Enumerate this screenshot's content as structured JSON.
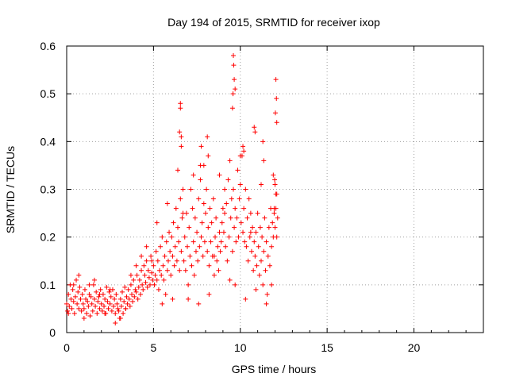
{
  "chart_data": {
    "type": "scatter",
    "title": "Day 194 of 2015, SRMTID for receiver ixop",
    "xlabel": "GPS time / hours",
    "ylabel": "SRMTID / TECUs",
    "xlim": [
      0,
      24
    ],
    "ylim": [
      0,
      0.6
    ],
    "xticks": [
      0,
      5,
      10,
      15,
      20
    ],
    "xtick_labels": [
      "0",
      "5",
      "10",
      "15",
      "20"
    ],
    "yticks": [
      0,
      0.1,
      0.2,
      0.3,
      0.4,
      0.5,
      0.6
    ],
    "ytick_labels": [
      "0",
      "0.1",
      "0.2",
      "0.3",
      "0.4",
      "0.5",
      "0.6"
    ],
    "grid": true,
    "marker": "+",
    "marker_color": "#ff0000",
    "series": [
      {
        "name": "SRMTID",
        "x": [
          0.0,
          0.05,
          0.1,
          0.15,
          0.2,
          0.25,
          0.3,
          0.35,
          0.4,
          0.45,
          0.5,
          0.55,
          0.6,
          0.65,
          0.7,
          0.75,
          0.8,
          0.85,
          0.9,
          0.95,
          1.0,
          1.05,
          1.1,
          1.15,
          1.2,
          1.25,
          1.3,
          1.35,
          1.4,
          1.45,
          1.5,
          1.55,
          1.6,
          1.65,
          1.7,
          1.75,
          1.8,
          1.85,
          1.9,
          1.95,
          2.0,
          2.05,
          2.1,
          2.15,
          2.2,
          2.25,
          2.3,
          2.35,
          2.4,
          2.45,
          2.5,
          2.55,
          2.6,
          2.65,
          2.7,
          2.75,
          2.8,
          2.85,
          2.9,
          2.95,
          3.0,
          3.05,
          3.1,
          3.15,
          3.2,
          3.25,
          3.3,
          3.35,
          3.4,
          3.45,
          3.5,
          3.55,
          3.6,
          3.65,
          3.7,
          3.75,
          3.8,
          3.85,
          3.9,
          3.95,
          4.0,
          4.05,
          4.1,
          4.15,
          4.2,
          4.25,
          4.3,
          4.35,
          4.4,
          4.45,
          4.5,
          4.55,
          4.6,
          4.65,
          4.7,
          4.75,
          4.8,
          4.85,
          4.9,
          4.95,
          5.0,
          5.05,
          5.1,
          5.15,
          5.2,
          5.25,
          5.3,
          5.35,
          5.4,
          5.45,
          5.5,
          5.55,
          5.6,
          5.65,
          5.7,
          5.75,
          5.8,
          5.85,
          5.9,
          5.95,
          6.0,
          6.05,
          6.1,
          6.15,
          6.2,
          6.25,
          6.3,
          6.35,
          6.4,
          6.45,
          6.5,
          6.55,
          6.6,
          6.65,
          6.7,
          6.75,
          6.8,
          6.85,
          6.9,
          6.95,
          7.0,
          7.05,
          7.1,
          7.15,
          7.2,
          7.25,
          7.3,
          7.35,
          7.4,
          7.45,
          7.5,
          7.55,
          7.6,
          7.65,
          7.7,
          7.75,
          7.8,
          7.85,
          7.9,
          7.95,
          8.0,
          8.05,
          8.1,
          8.15,
          8.2,
          8.25,
          8.3,
          8.35,
          8.4,
          8.45,
          8.5,
          8.55,
          8.6,
          8.65,
          8.7,
          8.75,
          8.8,
          8.85,
          8.9,
          8.95,
          9.0,
          9.05,
          9.1,
          9.15,
          9.2,
          9.25,
          9.3,
          9.35,
          9.4,
          9.45,
          9.5,
          9.55,
          9.6,
          9.65,
          9.7,
          9.75,
          9.8,
          9.85,
          9.9,
          9.95,
          10.0,
          10.05,
          10.1,
          10.15,
          10.2,
          10.25,
          10.3,
          10.35,
          10.4,
          10.45,
          10.5,
          10.55,
          10.6,
          10.65,
          10.7,
          10.75,
          10.8,
          10.85,
          10.9,
          10.95,
          11.0,
          11.05,
          11.1,
          11.15,
          11.2,
          11.25,
          11.3,
          11.35,
          11.4,
          11.45,
          11.5,
          11.55,
          11.6,
          11.65,
          11.7,
          11.75,
          11.8,
          11.85,
          11.9,
          11.95,
          12.0,
          12.05,
          12.1,
          12.15,
          0.1,
          0.4,
          0.7,
          1.0,
          1.3,
          1.6,
          1.9,
          2.2,
          2.5,
          2.8,
          3.1,
          3.4,
          3.7,
          4.0,
          4.3,
          4.6,
          4.9,
          5.2,
          5.5,
          5.8,
          6.1,
          6.4,
          6.7,
          7.0,
          7.3,
          7.6,
          7.9,
          8.2,
          8.5,
          8.8,
          9.1,
          9.4,
          9.7,
          10.0,
          10.3,
          10.6,
          10.9,
          11.2,
          11.5,
          11.8,
          12.1,
          6.55,
          6.55,
          6.6,
          6.6,
          6.5,
          9.6,
          9.62,
          9.65,
          9.58,
          9.7,
          9.55,
          12.05,
          12.08,
          12.02,
          12.1,
          10.8,
          10.85,
          10.15,
          10.2,
          7.7,
          7.75,
          8.1,
          8.15,
          11.3,
          11.35,
          11.9,
          12.0,
          11.95,
          11.98,
          12.05
        ],
        "y": [
          0.06,
          0.045,
          0.08,
          0.055,
          0.1,
          0.07,
          0.05,
          0.09,
          0.065,
          0.04,
          0.075,
          0.11,
          0.06,
          0.085,
          0.05,
          0.095,
          0.07,
          0.045,
          0.08,
          0.06,
          0.05,
          0.09,
          0.07,
          0.04,
          0.065,
          0.055,
          0.08,
          0.035,
          0.075,
          0.06,
          0.045,
          0.1,
          0.07,
          0.055,
          0.085,
          0.04,
          0.065,
          0.075,
          0.05,
          0.09,
          0.06,
          0.045,
          0.08,
          0.055,
          0.07,
          0.04,
          0.095,
          0.065,
          0.05,
          0.085,
          0.06,
          0.075,
          0.045,
          0.09,
          0.055,
          0.07,
          0.04,
          0.08,
          0.06,
          0.05,
          0.045,
          0.03,
          0.07,
          0.055,
          0.085,
          0.04,
          0.065,
          0.095,
          0.05,
          0.075,
          0.06,
          0.09,
          0.07,
          0.055,
          0.1,
          0.08,
          0.065,
          0.11,
          0.075,
          0.09,
          0.085,
          0.12,
          0.07,
          0.095,
          0.11,
          0.08,
          0.13,
          0.1,
          0.09,
          0.14,
          0.12,
          0.105,
          0.15,
          0.095,
          0.13,
          0.115,
          0.1,
          0.16,
          0.125,
          0.11,
          0.14,
          0.1,
          0.12,
          0.17,
          0.11,
          0.15,
          0.09,
          0.13,
          0.18,
          0.12,
          0.2,
          0.14,
          0.11,
          0.16,
          0.08,
          0.19,
          0.13,
          0.15,
          0.21,
          0.17,
          0.12,
          0.2,
          0.16,
          0.23,
          0.14,
          0.18,
          0.26,
          0.15,
          0.22,
          0.19,
          0.13,
          0.28,
          0.17,
          0.24,
          0.3,
          0.15,
          0.2,
          0.13,
          0.25,
          0.18,
          0.1,
          0.22,
          0.16,
          0.3,
          0.14,
          0.26,
          0.19,
          0.12,
          0.24,
          0.17,
          0.21,
          0.15,
          0.28,
          0.18,
          0.32,
          0.2,
          0.23,
          0.16,
          0.27,
          0.19,
          0.25,
          0.3,
          0.17,
          0.22,
          0.14,
          0.26,
          0.19,
          0.23,
          0.16,
          0.28,
          0.12,
          0.2,
          0.24,
          0.15,
          0.18,
          0.13,
          0.21,
          0.17,
          0.19,
          0.23,
          0.26,
          0.21,
          0.3,
          0.18,
          0.27,
          0.15,
          0.32,
          0.2,
          0.11,
          0.24,
          0.28,
          0.17,
          0.3,
          0.22,
          0.26,
          0.19,
          0.24,
          0.34,
          0.2,
          0.28,
          0.31,
          0.23,
          0.37,
          0.21,
          0.26,
          0.19,
          0.3,
          0.18,
          0.24,
          0.15,
          0.28,
          0.2,
          0.25,
          0.17,
          0.22,
          0.13,
          0.19,
          0.16,
          0.21,
          0.14,
          0.25,
          0.18,
          0.12,
          0.22,
          0.15,
          0.2,
          0.1,
          0.17,
          0.24,
          0.13,
          0.19,
          0.08,
          0.16,
          0.22,
          0.14,
          0.26,
          0.18,
          0.23,
          0.2,
          0.25,
          0.22,
          0.26,
          0.2,
          0.24,
          0.04,
          0.1,
          0.12,
          0.03,
          0.1,
          0.11,
          0.08,
          0.04,
          0.09,
          0.02,
          0.03,
          0.05,
          0.12,
          0.14,
          0.16,
          0.18,
          0.15,
          0.23,
          0.06,
          0.27,
          0.07,
          0.34,
          0.25,
          0.07,
          0.33,
          0.06,
          0.35,
          0.08,
          0.16,
          0.33,
          0.25,
          0.36,
          0.1,
          0.37,
          0.07,
          0.21,
          0.09,
          0.31,
          0.06,
          0.1,
          0.29,
          0.48,
          0.47,
          0.41,
          0.39,
          0.42,
          0.58,
          0.56,
          0.53,
          0.5,
          0.51,
          0.47,
          0.53,
          0.49,
          0.46,
          0.44,
          0.43,
          0.42,
          0.39,
          0.38,
          0.35,
          0.39,
          0.41,
          0.37,
          0.4,
          0.36,
          0.33,
          0.31,
          0.26,
          0.32,
          0.29
        ]
      }
    ]
  }
}
